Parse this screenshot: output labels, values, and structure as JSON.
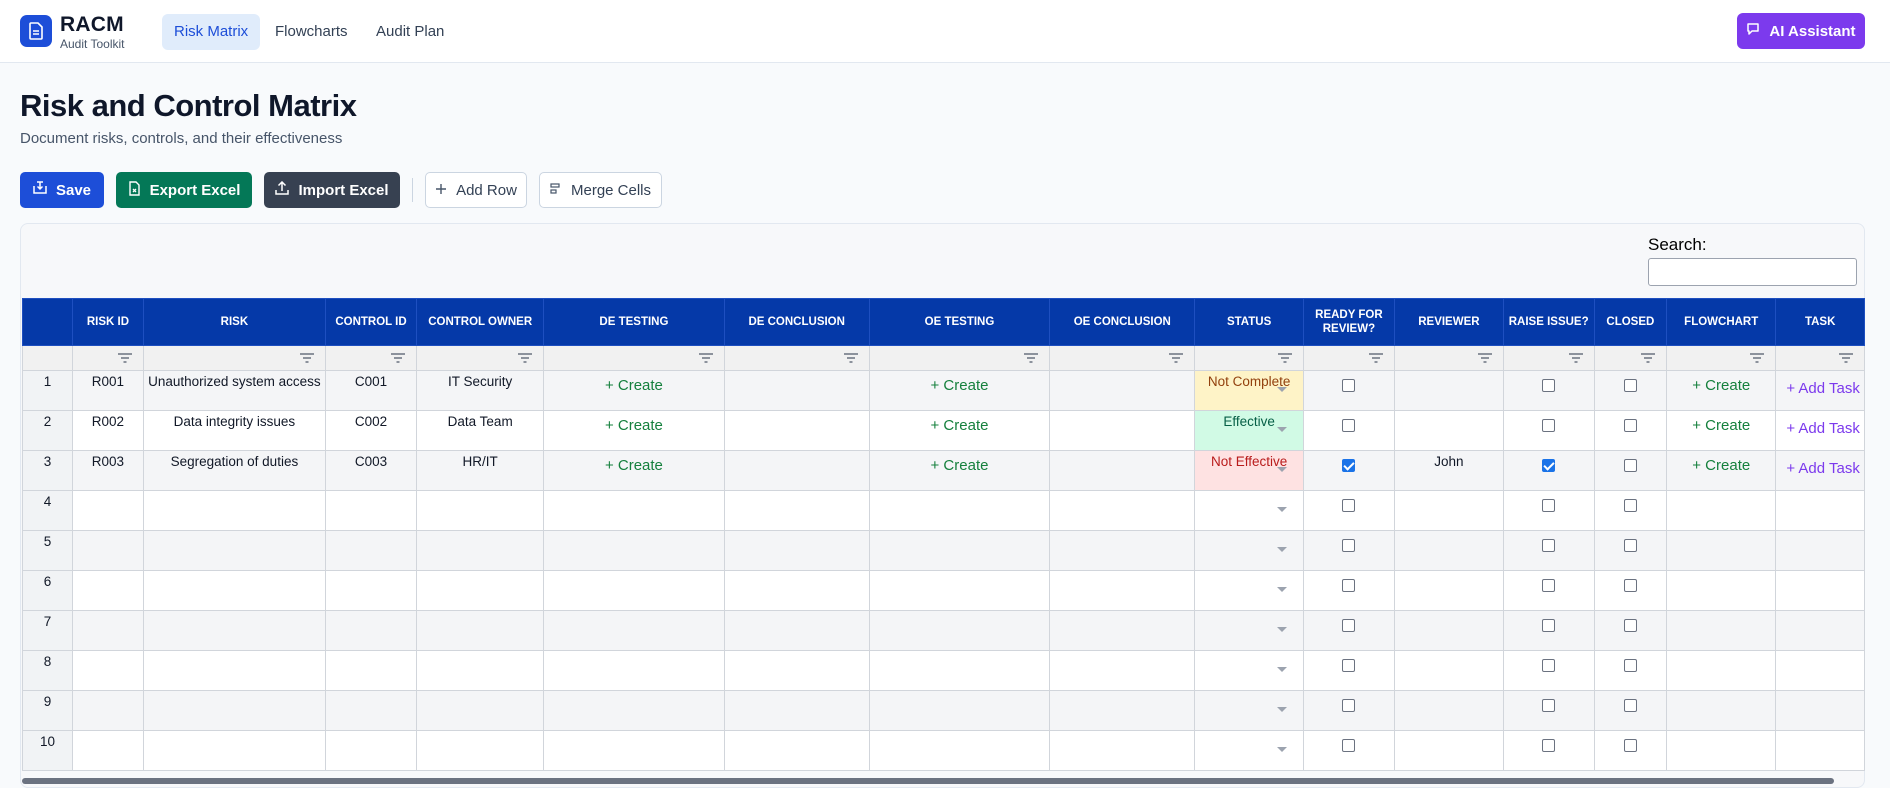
{
  "brand": {
    "title": "RACM",
    "subtitle": "Audit Toolkit"
  },
  "nav": {
    "tabs": [
      {
        "label": "Risk Matrix",
        "active": true
      },
      {
        "label": "Flowcharts",
        "active": false
      },
      {
        "label": "Audit Plan",
        "active": false
      }
    ],
    "ai_button": "AI Assistant"
  },
  "page": {
    "title": "Risk and Control Matrix",
    "subtitle": "Document risks, controls, and their effectiveness"
  },
  "toolbar": {
    "save": "Save",
    "export": "Export Excel",
    "import": "Import Excel",
    "add_row": "Add Row",
    "merge": "Merge Cells"
  },
  "search": {
    "label": "Search:",
    "value": ""
  },
  "table": {
    "columns": [
      "",
      "RISK ID",
      "RISK",
      "CONTROL ID",
      "CONTROL OWNER",
      "DE TESTING",
      "DE CONCLUSION",
      "OE TESTING",
      "OE CONCLUSION",
      "STATUS",
      "READY FOR REVIEW?",
      "REVIEWER",
      "RAISE ISSUE?",
      "CLOSED",
      "FLOWCHART",
      "TASK"
    ],
    "create_label": "+ Create",
    "task_label": "+ Add Task",
    "rows": [
      {
        "num": "1",
        "risk_id": "R001",
        "risk": "Unauthorized system access",
        "control_id": "C001",
        "owner": "IT Security",
        "de_testing": "+ Create",
        "oe_testing": "+ Create",
        "status": "Not Complete",
        "ready": false,
        "reviewer": "",
        "raise": false,
        "closed": false,
        "flowchart": "+ Create",
        "task": "+ Add Task"
      },
      {
        "num": "2",
        "risk_id": "R002",
        "risk": "Data integrity issues",
        "control_id": "C002",
        "owner": "Data Team",
        "de_testing": "+ Create",
        "oe_testing": "+ Create",
        "status": "Effective",
        "ready": false,
        "reviewer": "",
        "raise": false,
        "closed": false,
        "flowchart": "+ Create",
        "task": "+ Add Task"
      },
      {
        "num": "3",
        "risk_id": "R003",
        "risk": "Segregation of duties",
        "control_id": "C003",
        "owner": "HR/IT",
        "de_testing": "+ Create",
        "oe_testing": "+ Create",
        "status": "Not Effective",
        "ready": true,
        "reviewer": "John",
        "raise": true,
        "closed": false,
        "flowchart": "+ Create",
        "task": "+ Add Task"
      },
      {
        "num": "4",
        "risk_id": "",
        "risk": "",
        "control_id": "",
        "owner": "",
        "de_testing": "",
        "oe_testing": "",
        "status": "",
        "ready": false,
        "reviewer": "",
        "raise": false,
        "closed": false,
        "flowchart": "",
        "task": ""
      },
      {
        "num": "5",
        "risk_id": "",
        "risk": "",
        "control_id": "",
        "owner": "",
        "de_testing": "",
        "oe_testing": "",
        "status": "",
        "ready": false,
        "reviewer": "",
        "raise": false,
        "closed": false,
        "flowchart": "",
        "task": ""
      },
      {
        "num": "6",
        "risk_id": "",
        "risk": "",
        "control_id": "",
        "owner": "",
        "de_testing": "",
        "oe_testing": "",
        "status": "",
        "ready": false,
        "reviewer": "",
        "raise": false,
        "closed": false,
        "flowchart": "",
        "task": ""
      },
      {
        "num": "7",
        "risk_id": "",
        "risk": "",
        "control_id": "",
        "owner": "",
        "de_testing": "",
        "oe_testing": "",
        "status": "",
        "ready": false,
        "reviewer": "",
        "raise": false,
        "closed": false,
        "flowchart": "",
        "task": ""
      },
      {
        "num": "8",
        "risk_id": "",
        "risk": "",
        "control_id": "",
        "owner": "",
        "de_testing": "",
        "oe_testing": "",
        "status": "",
        "ready": false,
        "reviewer": "",
        "raise": false,
        "closed": false,
        "flowchart": "",
        "task": ""
      },
      {
        "num": "9",
        "risk_id": "",
        "risk": "",
        "control_id": "",
        "owner": "",
        "de_testing": "",
        "oe_testing": "",
        "status": "",
        "ready": false,
        "reviewer": "",
        "raise": false,
        "closed": false,
        "flowchart": "",
        "task": ""
      },
      {
        "num": "10",
        "risk_id": "",
        "risk": "",
        "control_id": "",
        "owner": "",
        "de_testing": "",
        "oe_testing": "",
        "status": "",
        "ready": false,
        "reviewer": "",
        "raise": false,
        "closed": false,
        "flowchart": "",
        "task": ""
      }
    ]
  },
  "status_colors": {
    "Not Complete": {
      "bg": "#fef3c7",
      "fg": "#92400e"
    },
    "Effective": {
      "bg": "#d1fae5",
      "fg": "#065f46"
    },
    "Not Effective": {
      "bg": "#fee2e2",
      "fg": "#b91c1c"
    }
  },
  "colors": {
    "primary": "#1d4ed8",
    "header": "#0539a8",
    "export": "#15803d",
    "import": "#374151",
    "ai": "#7c3aed"
  },
  "icons": {
    "logo": "document-icon",
    "ai": "chat-icon",
    "save": "save-icon",
    "export": "file-excel-icon",
    "import": "upload-icon",
    "add_row": "plus-icon",
    "merge": "merge-icon",
    "filter": "filter-icon"
  }
}
